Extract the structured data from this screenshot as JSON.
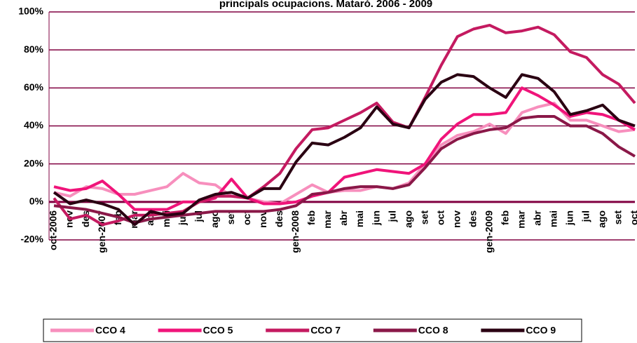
{
  "chart_data": {
    "type": "line",
    "title": "principals ocupacions. Mataró. 2006 - 2009",
    "categories": [
      "oct-2006",
      "nov",
      "des",
      "gen-2007",
      "feb",
      "mar",
      "abr",
      "mai",
      "jun",
      "jul",
      "ago",
      "set",
      "oct",
      "nov",
      "des",
      "gen-2008",
      "feb",
      "mar",
      "abr",
      "mai",
      "jun",
      "jul",
      "ago",
      "set",
      "oct",
      "nov",
      "des",
      "gen-2009",
      "feb",
      "mar",
      "abr",
      "mai",
      "jun",
      "jul",
      "ago",
      "set",
      "oct"
    ],
    "series": [
      {
        "name": "CCO 4",
        "color": "#f78fbd",
        "values": [
          5,
          3,
          8,
          7,
          4,
          4,
          6,
          8,
          15,
          10,
          9,
          3,
          2,
          0,
          -1,
          4,
          9,
          5,
          6,
          6,
          8,
          7,
          10,
          20,
          30,
          35,
          37,
          41,
          36,
          47,
          50,
          52,
          43,
          43,
          40,
          37,
          38
        ]
      },
      {
        "name": "CCO 5",
        "color": "#f0147a",
        "values": [
          8,
          6,
          7,
          11,
          4,
          -4,
          -4,
          -4,
          0,
          0,
          2,
          12,
          2,
          -1,
          -1,
          0,
          3,
          5,
          13,
          15,
          17,
          16,
          15,
          20,
          33,
          41,
          46,
          46,
          47,
          60,
          56,
          51,
          45,
          47,
          46,
          43,
          38
        ]
      },
      {
        "name": "CCO 7",
        "color": "#c41a60",
        "values": [
          2,
          -9,
          -7,
          -12,
          -10,
          -7,
          -7,
          -6,
          -5,
          0,
          3,
          3,
          2,
          8,
          15,
          28,
          38,
          39,
          43,
          47,
          52,
          42,
          39,
          55,
          72,
          87,
          91,
          93,
          89,
          90,
          92,
          88,
          79,
          76,
          67,
          62,
          52
        ]
      },
      {
        "name": "CCO 8",
        "color": "#8a1848",
        "values": [
          -2,
          -3,
          -4,
          -6,
          -8,
          -11,
          -9,
          -8,
          -7,
          -6,
          -5,
          -5,
          -5,
          -5,
          -4,
          -2,
          4,
          5,
          7,
          8,
          8,
          7,
          9,
          18,
          28,
          33,
          36,
          38,
          39,
          44,
          45,
          45,
          40,
          40,
          36,
          29,
          24
        ]
      },
      {
        "name": "CCO 9",
        "color": "#2a0012",
        "values": [
          5,
          -1,
          1,
          -1,
          -4,
          -12,
          -5,
          -7,
          -6,
          1,
          4,
          5,
          2,
          7,
          7,
          21,
          31,
          30,
          34,
          39,
          50,
          41,
          39,
          54,
          63,
          67,
          66,
          60,
          55,
          67,
          65,
          58,
          46,
          48,
          51,
          43,
          40
        ]
      }
    ],
    "ylim": [
      -20,
      100
    ],
    "yticks": [
      {
        "value": -20,
        "label": "-20%"
      },
      {
        "value": 0,
        "label": "0%"
      },
      {
        "value": 20,
        "label": "20%"
      },
      {
        "value": 40,
        "label": "40%"
      },
      {
        "value": 60,
        "label": "60%"
      },
      {
        "value": 80,
        "label": "80%"
      },
      {
        "value": 100,
        "label": "100%"
      }
    ],
    "grid": true,
    "legend": "bottom"
  }
}
